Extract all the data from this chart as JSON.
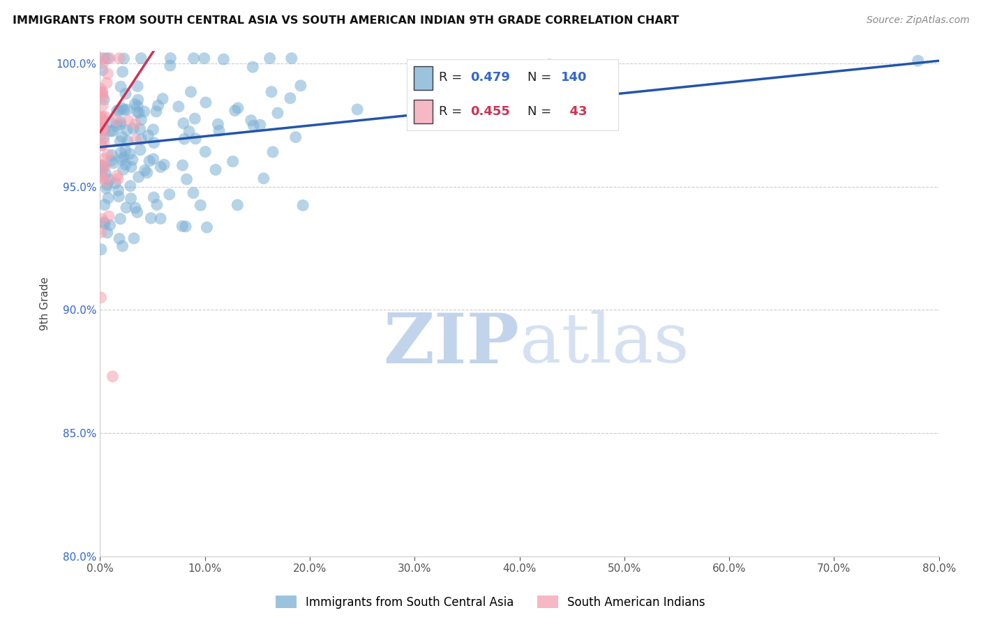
{
  "title": "IMMIGRANTS FROM SOUTH CENTRAL ASIA VS SOUTH AMERICAN INDIAN 9TH GRADE CORRELATION CHART",
  "source": "Source: ZipAtlas.com",
  "ylabel": "9th Grade",
  "legend_label_blue": "Immigrants from South Central Asia",
  "legend_label_pink": "South American Indians",
  "R_blue": 0.479,
  "N_blue": 140,
  "R_pink": 0.455,
  "N_pink": 43,
  "color_blue": "#7BAFD4",
  "color_pink": "#F4A0B0",
  "color_line_blue": "#2255AA",
  "color_line_pink": "#CC3355",
  "xlim": [
    0.0,
    0.8
  ],
  "ylim": [
    0.8,
    1.005
  ],
  "xtick_vals": [
    0.0,
    0.1,
    0.2,
    0.3,
    0.4,
    0.5,
    0.6,
    0.7,
    0.8
  ],
  "ytick_vals": [
    0.8,
    0.85,
    0.9,
    0.95,
    1.0
  ],
  "watermark_zip": "ZIP",
  "watermark_atlas": "atlas",
  "trend_blue_x0": 0.0,
  "trend_blue_y0": 0.966,
  "trend_blue_x1": 0.8,
  "trend_blue_y1": 1.001,
  "trend_pink_x0": 0.0,
  "trend_pink_y0": 0.972,
  "trend_pink_x1": 0.045,
  "trend_pink_y1": 1.001
}
